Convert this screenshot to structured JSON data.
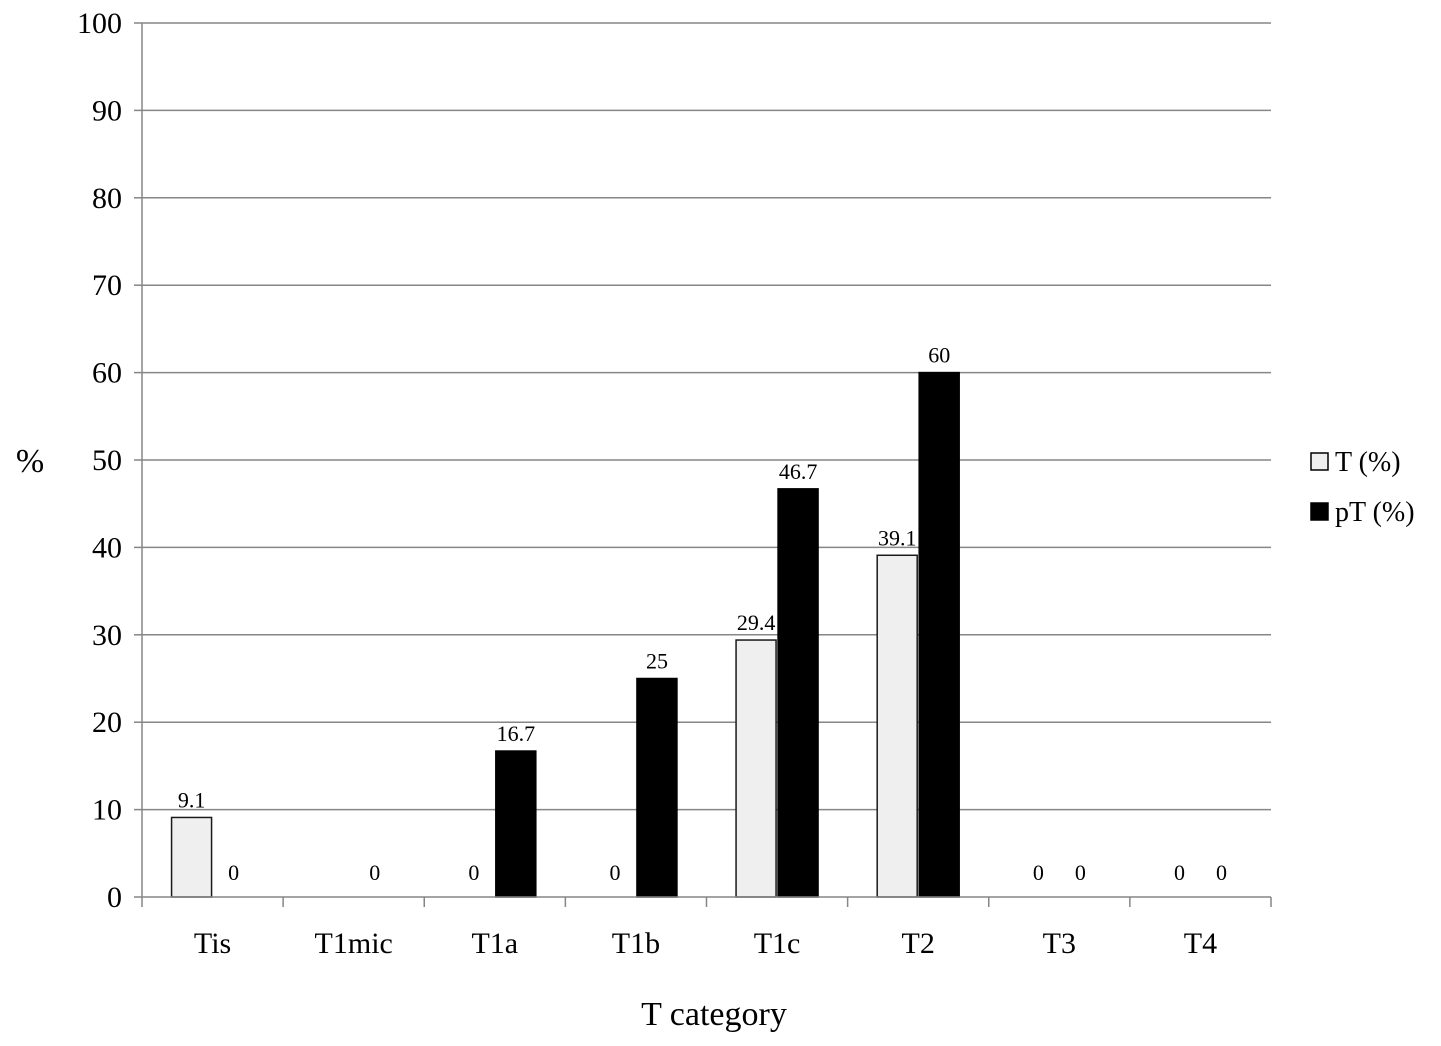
{
  "chart_data": {
    "type": "bar",
    "title": "",
    "xlabel": "T category",
    "ylabel": "%",
    "ylim": [
      0,
      100
    ],
    "yticks": [
      0,
      10,
      20,
      30,
      40,
      50,
      60,
      70,
      80,
      90,
      100
    ],
    "grid": true,
    "legend_position": "right",
    "categories": [
      "Tis",
      "T1mic",
      "T1a",
      "T1b",
      "T1c",
      "T2",
      "T3",
      "T4"
    ],
    "series": [
      {
        "name": "T (%)",
        "color": "#efefef",
        "values": [
          9.1,
          null,
          0,
          0,
          29.4,
          39.1,
          0,
          0
        ],
        "labels": [
          "9.1",
          "",
          "0",
          "0",
          "29.4",
          "39.1",
          "0",
          "0"
        ]
      },
      {
        "name": "pT (%)",
        "color": "#000000",
        "values": [
          0,
          0,
          16.7,
          25,
          46.7,
          60,
          0,
          0
        ],
        "labels": [
          "0",
          "0",
          "16.7",
          "25",
          "46.7",
          "60",
          "0",
          "0"
        ]
      }
    ]
  }
}
